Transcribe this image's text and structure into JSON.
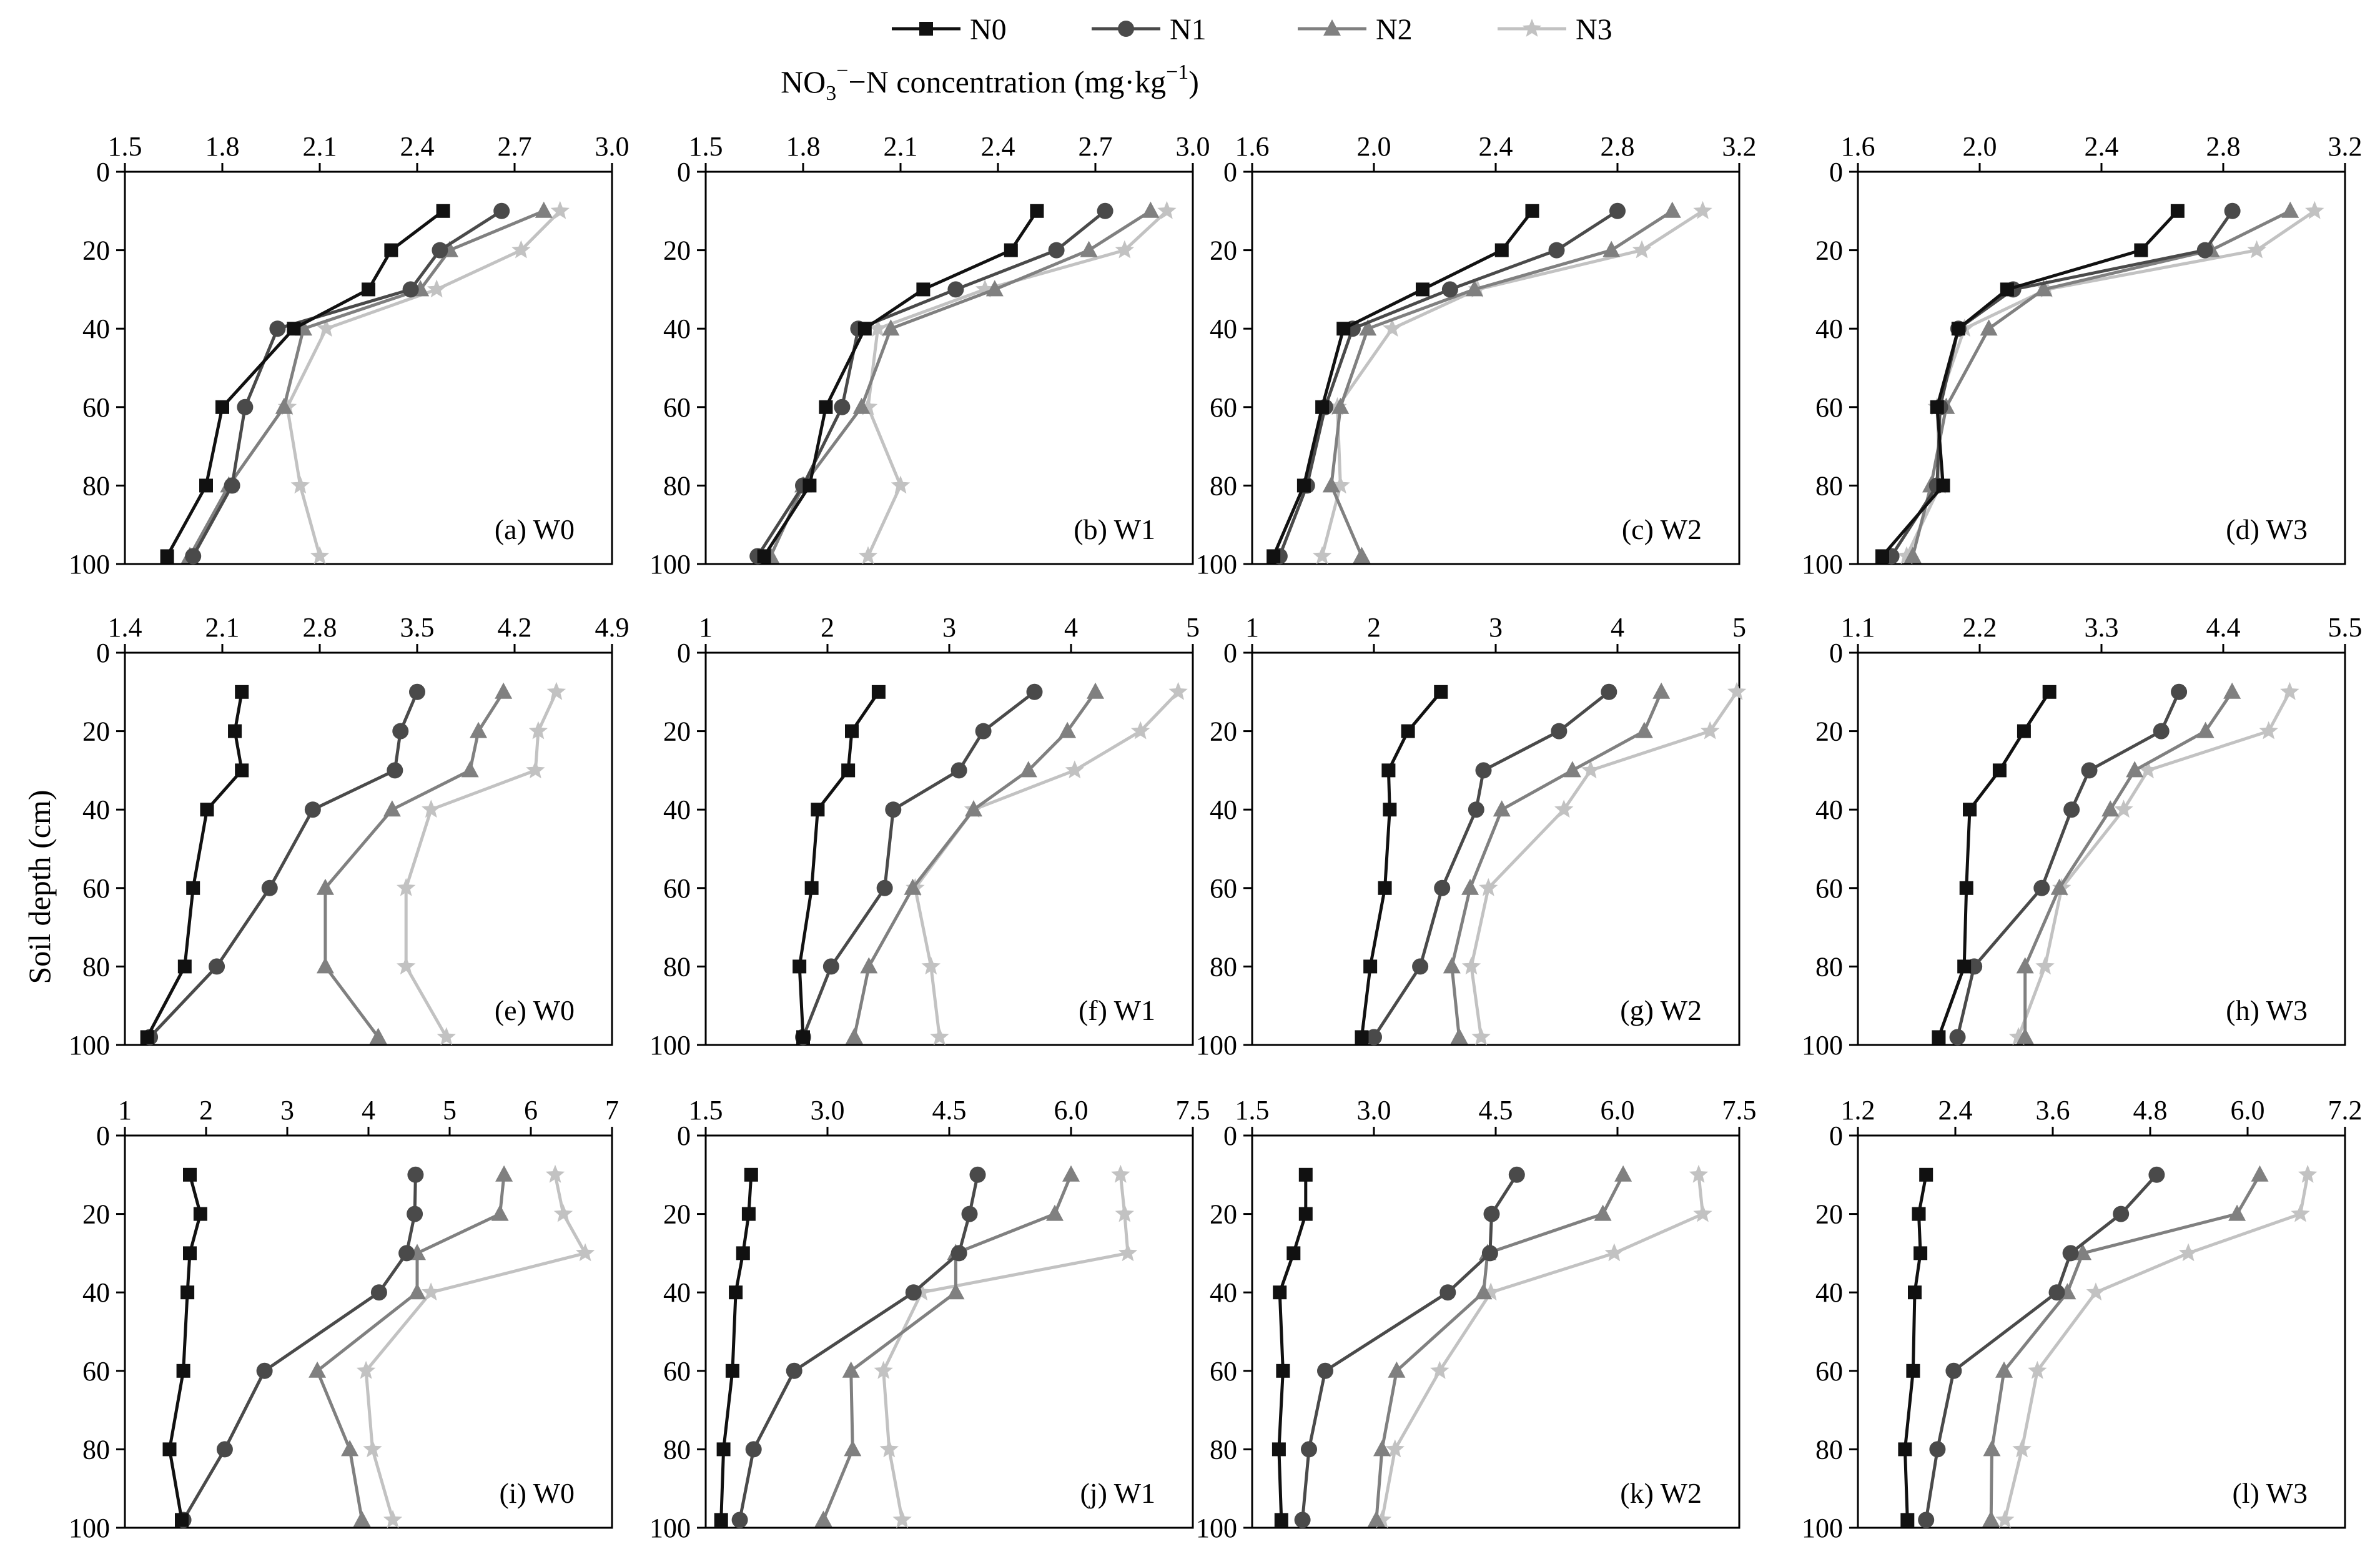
{
  "figure": {
    "x_title_main": "NO",
    "x_title_sub": "3",
    "x_title_sup": "−",
    "x_title_rest": "−N concentration (mg·kg",
    "x_title_unit_sup": "−1",
    "x_title_end": ")",
    "y_title": "Soil depth (cm)"
  },
  "legend": [
    {
      "name": "N0",
      "color": "#111111",
      "marker": "square"
    },
    {
      "name": "N1",
      "color": "#4a4a4a",
      "marker": "circle"
    },
    {
      "name": "N2",
      "color": "#808080",
      "marker": "triangle"
    },
    {
      "name": "N3",
      "color": "#c2c2c2",
      "marker": "star"
    }
  ],
  "chart_data": [
    {
      "type": "line",
      "title": "(a) W0",
      "xlim": [
        1.5,
        3.0
      ],
      "xticks": [
        "1.5",
        "1.8",
        "2.1",
        "2.4",
        "2.7",
        "3.0"
      ],
      "ylim": [
        0,
        100
      ],
      "yticks": [
        "0",
        "20",
        "40",
        "60",
        "80",
        "100"
      ],
      "depths": [
        10,
        20,
        30,
        40,
        60,
        80,
        98
      ],
      "series": [
        {
          "name": "N0",
          "values": [
            2.48,
            2.32,
            2.25,
            2.02,
            1.8,
            1.75,
            1.63
          ]
        },
        {
          "name": "N1",
          "values": [
            2.66,
            2.47,
            2.38,
            1.97,
            1.87,
            1.83,
            1.71
          ]
        },
        {
          "name": "N2",
          "values": [
            2.79,
            2.5,
            2.41,
            2.05,
            1.99,
            1.82,
            1.7
          ]
        },
        {
          "name": "N3",
          "values": [
            2.84,
            2.72,
            2.46,
            2.12,
            2.0,
            2.04,
            2.1
          ]
        }
      ]
    },
    {
      "type": "line",
      "title": "(b) W1",
      "xlim": [
        1.5,
        3.0
      ],
      "xticks": [
        "1.5",
        "1.8",
        "2.1",
        "2.4",
        "2.7",
        "3.0"
      ],
      "ylim": [
        0,
        100
      ],
      "yticks": [
        "0",
        "20",
        "40",
        "60",
        "80",
        "100"
      ],
      "depths": [
        10,
        20,
        30,
        40,
        60,
        80,
        98
      ],
      "series": [
        {
          "name": "N0",
          "values": [
            2.52,
            2.44,
            2.17,
            1.99,
            1.87,
            1.82,
            1.68
          ]
        },
        {
          "name": "N1",
          "values": [
            2.73,
            2.58,
            2.27,
            1.97,
            1.92,
            1.8,
            1.66
          ]
        },
        {
          "name": "N2",
          "values": [
            2.87,
            2.68,
            2.39,
            2.07,
            1.98,
            1.8,
            1.7
          ]
        },
        {
          "name": "N3",
          "values": [
            2.92,
            2.79,
            2.36,
            2.03,
            2.0,
            2.1,
            2.0
          ]
        }
      ]
    },
    {
      "type": "line",
      "title": "(c) W2",
      "xlim": [
        1.6,
        3.2
      ],
      "xticks": [
        "1.6",
        "2.0",
        "2.4",
        "2.8",
        "3.2"
      ],
      "ylim": [
        0,
        100
      ],
      "yticks": [
        "0",
        "20",
        "40",
        "60",
        "80",
        "100"
      ],
      "depths": [
        10,
        20,
        30,
        40,
        60,
        80,
        98
      ],
      "series": [
        {
          "name": "N0",
          "values": [
            2.52,
            2.42,
            2.16,
            1.9,
            1.83,
            1.77,
            1.67
          ]
        },
        {
          "name": "N1",
          "values": [
            2.8,
            2.6,
            2.25,
            1.93,
            1.84,
            1.78,
            1.69
          ]
        },
        {
          "name": "N2",
          "values": [
            2.98,
            2.78,
            2.33,
            1.98,
            1.89,
            1.86,
            1.96
          ]
        },
        {
          "name": "N3",
          "values": [
            3.08,
            2.88,
            2.34,
            2.06,
            1.88,
            1.89,
            1.83
          ]
        }
      ]
    },
    {
      "type": "line",
      "title": "(d) W3",
      "xlim": [
        1.6,
        3.2
      ],
      "xticks": [
        "1.6",
        "2.0",
        "2.4",
        "2.8",
        "3.2"
      ],
      "ylim": [
        0,
        100
      ],
      "yticks": [
        "0",
        "20",
        "40",
        "60",
        "80",
        "100"
      ],
      "depths": [
        10,
        20,
        30,
        40,
        60,
        80,
        98
      ],
      "series": [
        {
          "name": "N0",
          "values": [
            2.65,
            2.53,
            2.09,
            1.93,
            1.86,
            1.88,
            1.68
          ]
        },
        {
          "name": "N1",
          "values": [
            2.83,
            2.74,
            2.11,
            1.93,
            1.87,
            1.86,
            1.71
          ]
        },
        {
          "name": "N2",
          "values": [
            3.02,
            2.76,
            2.21,
            2.03,
            1.89,
            1.84,
            1.78
          ]
        },
        {
          "name": "N3",
          "values": [
            3.1,
            2.91,
            2.22,
            1.95,
            1.86,
            1.87,
            1.76
          ]
        }
      ]
    },
    {
      "type": "line",
      "title": "(e) W0",
      "xlim": [
        1.4,
        4.9
      ],
      "xticks": [
        "1.4",
        "2.1",
        "2.8",
        "3.5",
        "4.2",
        "4.9"
      ],
      "ylim": [
        0,
        100
      ],
      "yticks": [
        "0",
        "20",
        "40",
        "60",
        "80",
        "100"
      ],
      "depths": [
        10,
        20,
        30,
        40,
        60,
        80,
        98
      ],
      "series": [
        {
          "name": "N0",
          "values": [
            2.24,
            2.19,
            2.24,
            1.99,
            1.89,
            1.83,
            1.56
          ]
        },
        {
          "name": "N1",
          "values": [
            3.5,
            3.38,
            3.34,
            2.75,
            2.44,
            2.06,
            1.58
          ]
        },
        {
          "name": "N2",
          "values": [
            4.12,
            3.94,
            3.88,
            3.32,
            2.84,
            2.84,
            3.22
          ]
        },
        {
          "name": "N3",
          "values": [
            4.5,
            4.37,
            4.35,
            3.6,
            3.42,
            3.42,
            3.71
          ]
        }
      ]
    },
    {
      "type": "line",
      "title": "(f) W1",
      "xlim": [
        1,
        5
      ],
      "xticks": [
        "1",
        "2",
        "3",
        "4",
        "5"
      ],
      "ylim": [
        0,
        100
      ],
      "yticks": [
        "0",
        "20",
        "40",
        "60",
        "80",
        "100"
      ],
      "depths": [
        10,
        20,
        30,
        40,
        60,
        80,
        98
      ],
      "series": [
        {
          "name": "N0",
          "values": [
            2.42,
            2.2,
            2.17,
            1.92,
            1.87,
            1.77,
            1.8
          ]
        },
        {
          "name": "N1",
          "values": [
            3.7,
            3.28,
            3.08,
            2.54,
            2.47,
            2.03,
            1.8
          ]
        },
        {
          "name": "N2",
          "values": [
            4.2,
            3.97,
            3.65,
            3.2,
            2.7,
            2.34,
            2.22
          ]
        },
        {
          "name": "N3",
          "values": [
            4.88,
            4.57,
            4.03,
            3.2,
            2.72,
            2.85,
            2.92
          ]
        }
      ]
    },
    {
      "type": "line",
      "title": "(g) W2",
      "xlim": [
        1,
        5
      ],
      "xticks": [
        "1",
        "2",
        "3",
        "4",
        "5"
      ],
      "ylim": [
        0,
        100
      ],
      "yticks": [
        "0",
        "20",
        "40",
        "60",
        "80",
        "100"
      ],
      "depths": [
        10,
        20,
        30,
        40,
        60,
        80,
        98
      ],
      "series": [
        {
          "name": "N0",
          "values": [
            2.55,
            2.28,
            2.12,
            2.13,
            2.09,
            1.97,
            1.9
          ]
        },
        {
          "name": "N1",
          "values": [
            3.93,
            3.52,
            2.9,
            2.84,
            2.56,
            2.38,
            2.0
          ]
        },
        {
          "name": "N2",
          "values": [
            4.36,
            4.22,
            3.63,
            3.05,
            2.79,
            2.64,
            2.7
          ]
        },
        {
          "name": "N3",
          "values": [
            4.98,
            4.76,
            3.78,
            3.56,
            2.94,
            2.8,
            2.88
          ]
        }
      ]
    },
    {
      "type": "line",
      "title": "(h) W3",
      "xlim": [
        1.1,
        5.5
      ],
      "xticks": [
        "1.1",
        "2.2",
        "3.3",
        "4.4",
        "5.5"
      ],
      "ylim": [
        0,
        100
      ],
      "yticks": [
        "0",
        "20",
        "40",
        "60",
        "80",
        "100"
      ],
      "depths": [
        10,
        20,
        30,
        40,
        60,
        80,
        98
      ],
      "series": [
        {
          "name": "N0",
          "values": [
            2.83,
            2.6,
            2.38,
            2.11,
            2.08,
            2.06,
            1.83
          ]
        },
        {
          "name": "N1",
          "values": [
            4.0,
            3.84,
            3.19,
            3.03,
            2.76,
            2.15,
            2.0
          ]
        },
        {
          "name": "N2",
          "values": [
            4.48,
            4.24,
            3.6,
            3.38,
            2.92,
            2.61,
            2.61
          ]
        },
        {
          "name": "N3",
          "values": [
            5.0,
            4.81,
            3.72,
            3.5,
            2.94,
            2.79,
            2.55
          ]
        }
      ]
    },
    {
      "type": "line",
      "title": "(i) W0",
      "xlim": [
        1,
        7
      ],
      "xticks": [
        "1",
        "2",
        "3",
        "4",
        "5",
        "6",
        "7"
      ],
      "ylim": [
        0,
        100
      ],
      "yticks": [
        "0",
        "20",
        "40",
        "60",
        "80",
        "100"
      ],
      "depths": [
        10,
        20,
        30,
        40,
        60,
        80,
        98
      ],
      "series": [
        {
          "name": "N0",
          "values": [
            1.8,
            1.93,
            1.8,
            1.77,
            1.72,
            1.55,
            1.7
          ]
        },
        {
          "name": "N1",
          "values": [
            4.58,
            4.57,
            4.47,
            4.13,
            2.72,
            2.23,
            1.72
          ]
        },
        {
          "name": "N2",
          "values": [
            5.67,
            5.62,
            4.6,
            4.6,
            3.37,
            3.77,
            3.92
          ]
        },
        {
          "name": "N3",
          "values": [
            6.3,
            6.4,
            6.67,
            4.77,
            3.97,
            4.05,
            4.3
          ]
        }
      ]
    },
    {
      "type": "line",
      "title": "(j) W1",
      "xlim": [
        1.5,
        7.5
      ],
      "xticks": [
        "1.5",
        "3.0",
        "4.5",
        "6.0",
        "7.5"
      ],
      "ylim": [
        0,
        100
      ],
      "yticks": [
        "0",
        "20",
        "40",
        "60",
        "80",
        "100"
      ],
      "depths": [
        10,
        20,
        30,
        40,
        60,
        80,
        98
      ],
      "series": [
        {
          "name": "N0",
          "values": [
            2.06,
            2.03,
            1.96,
            1.87,
            1.83,
            1.72,
            1.69
          ]
        },
        {
          "name": "N1",
          "values": [
            4.85,
            4.75,
            4.62,
            4.06,
            2.59,
            2.09,
            1.92
          ]
        },
        {
          "name": "N2",
          "values": [
            6.0,
            5.8,
            4.58,
            4.58,
            3.29,
            3.31,
            2.95
          ]
        },
        {
          "name": "N3",
          "values": [
            6.61,
            6.66,
            6.7,
            4.16,
            3.69,
            3.76,
            3.92
          ]
        }
      ]
    },
    {
      "type": "line",
      "title": "(k) W2",
      "xlim": [
        1.5,
        7.5
      ],
      "xticks": [
        "1.5",
        "3.0",
        "4.5",
        "6.0",
        "7.5"
      ],
      "ylim": [
        0,
        100
      ],
      "yticks": [
        "0",
        "20",
        "40",
        "60",
        "80",
        "100"
      ],
      "depths": [
        10,
        20,
        30,
        40,
        60,
        80,
        98
      ],
      "series": [
        {
          "name": "N0",
          "values": [
            2.16,
            2.16,
            2.01,
            1.84,
            1.88,
            1.83,
            1.86
          ]
        },
        {
          "name": "N1",
          "values": [
            4.76,
            4.45,
            4.43,
            3.91,
            2.4,
            2.2,
            2.12
          ]
        },
        {
          "name": "N2",
          "values": [
            6.07,
            5.82,
            4.4,
            4.35,
            3.28,
            3.1,
            3.03
          ]
        },
        {
          "name": "N3",
          "values": [
            7.0,
            7.05,
            5.96,
            4.44,
            3.81,
            3.26,
            3.1
          ]
        }
      ]
    },
    {
      "type": "line",
      "title": "(l) W3",
      "xlim": [
        1.2,
        7.2
      ],
      "xticks": [
        "1.2",
        "2.4",
        "3.6",
        "4.8",
        "6.0",
        "7.2"
      ],
      "ylim": [
        0,
        100
      ],
      "yticks": [
        "0",
        "20",
        "40",
        "60",
        "80",
        "100"
      ],
      "depths": [
        10,
        20,
        30,
        40,
        60,
        80,
        98
      ],
      "series": [
        {
          "name": "N0",
          "values": [
            2.04,
            1.95,
            1.97,
            1.9,
            1.88,
            1.78,
            1.81
          ]
        },
        {
          "name": "N1",
          "values": [
            4.88,
            4.44,
            3.82,
            3.65,
            2.38,
            2.18,
            2.04
          ]
        },
        {
          "name": "N2",
          "values": [
            6.15,
            5.87,
            3.97,
            3.78,
            3.0,
            2.85,
            2.84
          ]
        },
        {
          "name": "N3",
          "values": [
            6.74,
            6.65,
            5.27,
            4.13,
            3.41,
            3.22,
            3.01
          ]
        }
      ]
    }
  ]
}
